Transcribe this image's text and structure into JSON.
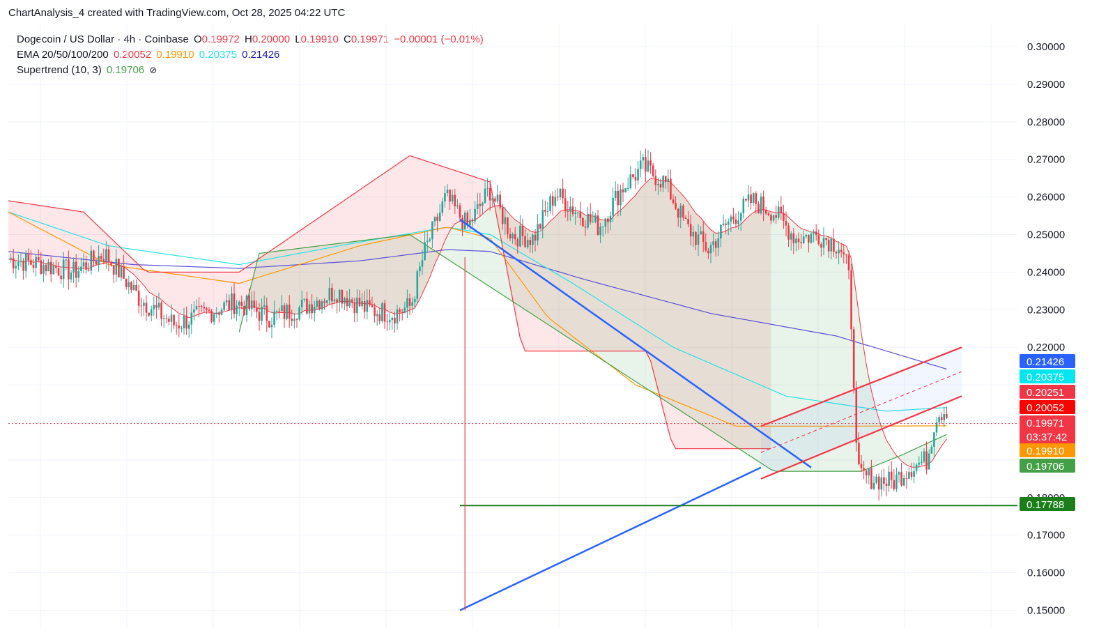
{
  "header": {
    "title": "ChartAnalysis_4 created with TradingView.com, Oct 28, 2025 04:22 UTC"
  },
  "legend": {
    "symbol": "Dogecoin / US Dollar · 4h · Coinbase",
    "o_label": "O",
    "o_value": "0.19972",
    "h_label": "H",
    "h_value": "0.20000",
    "l_label": "L",
    "l_value": "0.19910",
    "c_label": "C",
    "c_value": "0.19971",
    "change": "−0.00001 (−0.01%)",
    "ema_label": "EMA 20/50/100/200",
    "ema20": "0.20052",
    "ema50": "0.19910",
    "ema100": "0.20375",
    "ema200": "0.21426",
    "st_label": "Supertrend (10, 3)",
    "st_value": "0.19706",
    "st_icon": "eye-off-icon"
  },
  "colors": {
    "bull": "#26a69a",
    "bear": "#f23645",
    "ema20": "#f23645",
    "ema50": "#ff9800",
    "ema100": "#26e2e6",
    "ema200": "#5b4fd6",
    "supertrend_down": "#f23645",
    "supertrend_up": "#43a047",
    "triangle": "#2962ff",
    "channel": "#f23645",
    "support": "#1b7e1b"
  },
  "chart_data": {
    "type": "candlestick",
    "title": "Dogecoin / US Dollar · 4h · Coinbase",
    "ylim": [
      0.1465,
      0.304
    ],
    "y_ticks": [
      "0.30000",
      "0.29000",
      "0.28000",
      "0.27000",
      "0.26000",
      "0.25000",
      "0.24000",
      "0.23000",
      "0.22000",
      "0.18000",
      "0.17000",
      "0.16000",
      "0.15000"
    ],
    "y_tick_values": [
      0.3,
      0.29,
      0.28,
      0.27,
      0.26,
      0.25,
      0.24,
      0.23,
      0.22,
      0.18,
      0.17,
      0.16,
      0.15
    ],
    "bar_count": 215,
    "close_path": [
      [
        0,
        0.2435
      ],
      [
        8,
        0.242
      ],
      [
        15,
        0.24
      ],
      [
        22,
        0.245
      ],
      [
        30,
        0.233
      ],
      [
        38,
        0.226
      ],
      [
        45,
        0.229
      ],
      [
        52,
        0.232
      ],
      [
        60,
        0.228
      ],
      [
        68,
        0.231
      ],
      [
        75,
        0.235
      ],
      [
        82,
        0.23
      ],
      [
        88,
        0.229
      ],
      [
        92,
        0.231
      ],
      [
        95,
        0.245
      ],
      [
        100,
        0.26
      ],
      [
        105,
        0.252
      ],
      [
        110,
        0.262
      ],
      [
        115,
        0.25
      ],
      [
        120,
        0.249
      ],
      [
        125,
        0.261
      ],
      [
        130,
        0.256
      ],
      [
        135,
        0.252
      ],
      [
        140,
        0.262
      ],
      [
        145,
        0.268
      ],
      [
        150,
        0.264
      ],
      [
        155,
        0.252
      ],
      [
        160,
        0.246
      ],
      [
        165,
        0.254
      ],
      [
        170,
        0.259
      ],
      [
        175,
        0.256
      ],
      [
        180,
        0.249
      ],
      [
        185,
        0.25
      ],
      [
        190,
        0.247
      ],
      [
        192,
        0.24
      ],
      [
        193,
        0.22
      ],
      [
        194,
        0.186
      ],
      [
        198,
        0.185
      ],
      [
        202,
        0.184
      ],
      [
        206,
        0.188
      ],
      [
        210,
        0.19
      ],
      [
        212,
        0.202
      ],
      [
        215,
        0.204
      ]
    ],
    "ema200": [
      [
        0,
        0.2455
      ],
      [
        50,
        0.242
      ],
      [
        92,
        0.241
      ],
      [
        140,
        0.243
      ],
      [
        175,
        0.246
      ],
      [
        192,
        0.2455
      ],
      [
        230,
        0.238
      ],
      [
        280,
        0.229
      ],
      [
        330,
        0.223
      ],
      [
        375,
        0.214
      ]
    ],
    "ema100": [
      [
        0,
        0.256
      ],
      [
        40,
        0.247
      ],
      [
        92,
        0.242
      ],
      [
        140,
        0.248
      ],
      [
        175,
        0.252
      ],
      [
        192,
        0.25
      ],
      [
        225,
        0.237
      ],
      [
        265,
        0.22
      ],
      [
        310,
        0.207
      ],
      [
        350,
        0.203
      ],
      [
        375,
        0.204
      ]
    ],
    "ema50": [
      [
        0,
        0.256
      ],
      [
        40,
        0.242
      ],
      [
        92,
        0.237
      ],
      [
        140,
        0.247
      ],
      [
        175,
        0.252
      ],
      [
        192,
        0.249
      ],
      [
        215,
        0.228
      ],
      [
        250,
        0.21
      ],
      [
        290,
        0.199
      ],
      [
        330,
        0.199
      ],
      [
        375,
        0.1991
      ]
    ],
    "supertrend_down_level": [
      [
        0,
        0.259
      ],
      [
        30,
        0.256
      ],
      [
        55,
        0.24
      ],
      [
        92,
        0.24
      ],
      [
        160,
        0.271
      ],
      [
        192,
        0.264
      ],
      [
        205,
        0.219
      ],
      [
        255,
        0.219
      ],
      [
        265,
        0.193
      ],
      [
        305,
        0.193
      ]
    ],
    "supertrend_up_level": [
      [
        92,
        0.224
      ],
      [
        100,
        0.245
      ],
      [
        160,
        0.25
      ],
      [
        305,
        0.187
      ],
      [
        340,
        0.187
      ],
      [
        355,
        0.191
      ],
      [
        375,
        0.1971
      ]
    ],
    "drawings": {
      "triangle_upper": {
        "from": [
          0.254
        ],
        "to": [
          0.188
        ]
      },
      "triangle_lower": {
        "from": [
          0.15
        ],
        "to": [
          0.187
        ]
      },
      "support_level": 0.17788,
      "channel_upper_end": 0.22,
      "channel_lower_end": 0.207
    },
    "price_badges": [
      {
        "value": "0.21426",
        "price": 0.21426,
        "color": "#2962ff"
      },
      {
        "value": "0.20375",
        "price": 0.20375,
        "color": "#00e5ee"
      },
      {
        "value": "0.20251",
        "price": 0.20251,
        "color": "#f23645"
      },
      {
        "value": "0.20052",
        "price": 0.20052,
        "color": "#ff0000"
      },
      {
        "value": "0.19971",
        "price": 0.19971,
        "color": "#f23645",
        "subtext": "03:37:42"
      },
      {
        "value": "0.19910",
        "price": 0.1991,
        "color": "#ff9800"
      },
      {
        "value": "0.19706",
        "price": 0.19706,
        "color": "#43a047"
      },
      {
        "value": "0.17788",
        "price": 0.17788,
        "color": "#1b7e1b"
      }
    ],
    "current_price": 0.19971
  }
}
